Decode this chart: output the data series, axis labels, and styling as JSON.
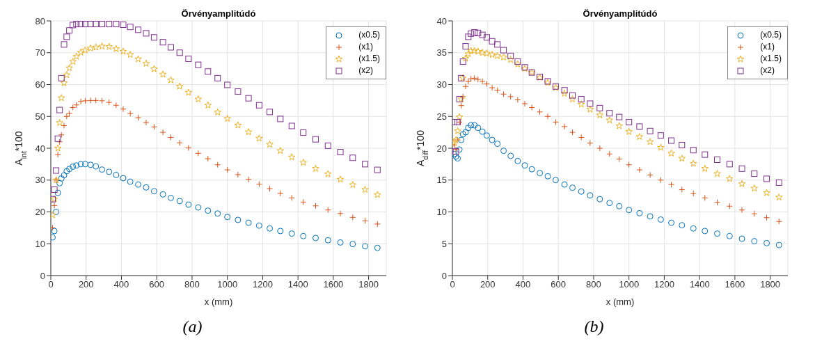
{
  "chart_data": [
    {
      "type": "scatter",
      "title": "Örvényamplitúdó",
      "xlabel": "x (mm)",
      "ylabel": "A$_{int}$*100",
      "xlim": [
        0,
        1900
      ],
      "xticks": [
        0,
        200,
        400,
        600,
        800,
        1000,
        1200,
        1400,
        1600,
        1800
      ],
      "ylim": [
        0,
        80
      ],
      "yticks": [
        0,
        10,
        20,
        30,
        40,
        50,
        60,
        70,
        80
      ],
      "grid": true,
      "legend": "top right",
      "annotations": [
        "(a)"
      ],
      "x": [
        10,
        20,
        30,
        40,
        50,
        60,
        75,
        90,
        105,
        125,
        145,
        170,
        195,
        225,
        255,
        290,
        330,
        370,
        410,
        450,
        495,
        540,
        585,
        635,
        680,
        730,
        780,
        835,
        890,
        945,
        1000,
        1060,
        1120,
        1180,
        1240,
        1300,
        1365,
        1430,
        1500,
        1570,
        1640,
        1710,
        1780,
        1850
      ],
      "series": [
        {
          "name": "(x0.5)",
          "color": "#0072bd",
          "marker": "circle",
          "values": [
            12,
            14,
            20,
            26,
            29,
            30.5,
            31.5,
            32.8,
            33.5,
            34.2,
            34.6,
            35,
            35,
            34.8,
            34.3,
            33.3,
            32.6,
            31.6,
            30.6,
            29.5,
            28.6,
            27.7,
            26.5,
            25.5,
            24.4,
            23.4,
            22.3,
            21.4,
            20.4,
            19.5,
            18.4,
            17.5,
            16.6,
            15.7,
            14.8,
            14,
            13.2,
            12.4,
            11.8,
            11.1,
            10.4,
            9.9,
            9.2,
            8.7
          ]
        },
        {
          "name": "(x1)",
          "color": "#d95319",
          "marker": "cross",
          "values": [
            15,
            22,
            30,
            38,
            42,
            44.2,
            47.1,
            50,
            50.9,
            52.8,
            53.6,
            54.7,
            54.9,
            55,
            55,
            54.9,
            54.4,
            53.5,
            52.3,
            50.9,
            49.6,
            48.1,
            46.7,
            45,
            43.4,
            41.7,
            40.1,
            38.4,
            36.7,
            34.8,
            33.2,
            31.7,
            30.2,
            28.7,
            27.3,
            25.8,
            24.4,
            23.1,
            21.9,
            20.6,
            19.5,
            18.3,
            17.2,
            16.2
          ]
        },
        {
          "name": "(x1.5)",
          "color": "#edb120",
          "marker": "star",
          "values": [
            19,
            24,
            30,
            40,
            48,
            55.8,
            60.5,
            63,
            65.2,
            67.2,
            68.8,
            70.1,
            70.8,
            71.4,
            71.7,
            72,
            71.9,
            71.2,
            70.4,
            69.4,
            68,
            66.6,
            64.9,
            63.2,
            61.4,
            59.4,
            57.5,
            55.4,
            53.5,
            51.3,
            49.3,
            47.2,
            45.1,
            43.1,
            41.2,
            39.2,
            37.2,
            35.5,
            33.6,
            31.9,
            30.2,
            28.5,
            27,
            25.4
          ]
        },
        {
          "name": "(x2)",
          "color": "#7e2f8e",
          "marker": "square",
          "values": [
            24,
            27,
            33,
            43,
            52,
            62,
            72.6,
            75,
            77,
            78.7,
            79,
            79,
            79,
            79,
            79,
            79,
            79,
            79,
            78.8,
            78.1,
            77.2,
            76.1,
            74.8,
            73.3,
            71.7,
            70,
            68.1,
            66.2,
            64.1,
            62,
            59.9,
            57.8,
            55.7,
            53.5,
            51.4,
            49.2,
            47,
            44.9,
            42.8,
            40.8,
            38.8,
            37,
            35,
            33.2
          ]
        }
      ]
    },
    {
      "type": "scatter",
      "title": "Örvényamplitúdó",
      "xlabel": "x (mm)",
      "ylabel": "A$_{diff}$*100",
      "xlim": [
        0,
        1900
      ],
      "xticks": [
        0,
        200,
        400,
        600,
        800,
        1000,
        1200,
        1400,
        1600,
        1800
      ],
      "ylim": [
        0,
        40
      ],
      "yticks": [
        0,
        5,
        10,
        15,
        20,
        25,
        30,
        35,
        40
      ],
      "grid": true,
      "legend": "top right",
      "annotations": [
        "(b)"
      ],
      "x": [
        10,
        20,
        30,
        40,
        50,
        60,
        75,
        90,
        105,
        125,
        145,
        170,
        195,
        225,
        255,
        290,
        330,
        370,
        410,
        450,
        495,
        540,
        585,
        635,
        680,
        730,
        780,
        835,
        890,
        945,
        1000,
        1060,
        1120,
        1180,
        1240,
        1300,
        1365,
        1430,
        1500,
        1570,
        1640,
        1710,
        1780,
        1850
      ],
      "series": [
        {
          "name": "(x0.5)",
          "color": "#0072bd",
          "marker": "circle",
          "values": [
            19.1,
            18.7,
            18.4,
            19.8,
            21.3,
            22.2,
            22.5,
            23.2,
            23.6,
            23.6,
            23.2,
            22.6,
            22,
            21.3,
            20.7,
            19.6,
            18.8,
            18,
            17.3,
            16.7,
            16.1,
            15.6,
            15,
            14.3,
            13.8,
            13.2,
            12.6,
            12,
            11.4,
            10.9,
            10.3,
            9.8,
            9.3,
            8.8,
            8.3,
            7.9,
            7.4,
            7,
            6.6,
            6.2,
            5.8,
            5.4,
            5.1,
            4.8
          ]
        },
        {
          "name": "(x1)",
          "color": "#d95319",
          "marker": "cross",
          "values": [
            20.5,
            19.8,
            21.3,
            24.1,
            26.7,
            28.1,
            29.7,
            30.5,
            30.9,
            31,
            30.8,
            30.5,
            30.1,
            29.5,
            29.1,
            28.5,
            28.1,
            27.6,
            27,
            26.4,
            25.7,
            25,
            24.1,
            23.4,
            22.5,
            21.7,
            20.8,
            20,
            19.1,
            18.3,
            17.4,
            16.6,
            15.8,
            15,
            14.3,
            13.5,
            12.9,
            12.2,
            11.5,
            10.9,
            10.3,
            9.7,
            9.1,
            8.5
          ]
        },
        {
          "name": "(x1.5)",
          "color": "#edb120",
          "marker": "star",
          "values": [
            20.9,
            21.3,
            22.7,
            24.9,
            27.7,
            31,
            34.1,
            34.8,
            35.3,
            35.3,
            35.2,
            35,
            34.9,
            34.7,
            34.5,
            34.3,
            33.9,
            33.2,
            32.5,
            31.9,
            31.1,
            30.3,
            29.5,
            28.6,
            27.7,
            26.9,
            26.1,
            25.2,
            24.4,
            23.5,
            22.6,
            21.8,
            21,
            20.1,
            19.2,
            18.4,
            17.6,
            16.8,
            16,
            15.2,
            14.4,
            13.7,
            13,
            12.3
          ]
        },
        {
          "name": "(x2)",
          "color": "#7e2f8e",
          "marker": "square",
          "values": [
            24.1,
            19.5,
            24.1,
            27.7,
            31,
            33.6,
            36,
            37.5,
            38,
            38.2,
            38.1,
            37.8,
            37.4,
            36.8,
            36.3,
            35.4,
            34.5,
            33.6,
            32.7,
            31.9,
            31.2,
            30.5,
            29.7,
            29.1,
            28.3,
            27.7,
            27,
            26.3,
            25.5,
            24.9,
            24.1,
            23.4,
            22.7,
            22,
            21.2,
            20.5,
            19.7,
            19,
            18.2,
            17.5,
            16.8,
            16,
            15.2,
            14.6
          ]
        }
      ]
    }
  ]
}
